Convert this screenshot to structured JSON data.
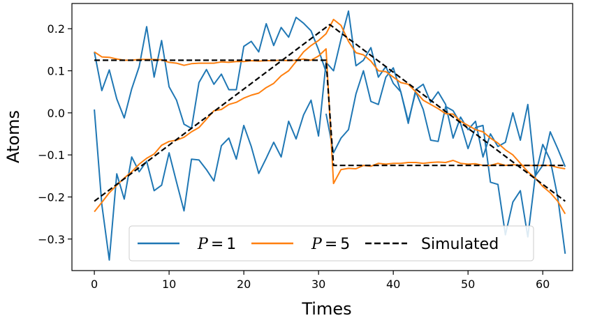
{
  "chart_data": {
    "type": "line",
    "xlabel": "Times",
    "ylabel": "Atoms",
    "xlim": [
      -3,
      64
    ],
    "ylim": [
      -0.375,
      0.26
    ],
    "xticks": [
      0,
      10,
      20,
      30,
      40,
      50,
      60
    ],
    "yticks": [
      -0.3,
      -0.2,
      -0.1,
      0.0,
      0.1,
      0.2
    ],
    "ytick_labels": [
      "−0.3",
      "−0.2",
      "−0.1",
      "0.0",
      "0.1",
      "0.2"
    ],
    "legend_position": "lower-center",
    "grid": false,
    "series": [
      {
        "name": "P=1",
        "legend_var": "P",
        "legend_eq": "=",
        "legend_num": "1",
        "color": "#1f77b4",
        "style": "solid",
        "line": 0,
        "x": [
          0,
          1,
          2,
          3,
          4,
          5,
          6,
          7,
          8,
          9,
          10,
          11,
          12,
          13,
          14,
          15,
          16,
          17,
          18,
          19,
          20,
          21,
          22,
          23,
          24,
          25,
          26,
          27,
          28,
          29,
          30,
          31
        ],
        "y": [
          0.145,
          0.053,
          0.102,
          0.033,
          -0.012,
          0.057,
          0.11,
          0.205,
          0.085,
          0.172,
          0.062,
          0.03,
          -0.027,
          -0.037,
          0.072,
          0.103,
          0.068,
          0.092,
          0.055,
          0.055,
          0.158,
          0.17,
          0.145,
          0.212,
          0.16,
          0.203,
          0.18,
          0.227,
          0.213,
          0.195,
          0.15,
          0.097
        ]
      },
      {
        "name": "",
        "color": "#1f77b4",
        "style": "solid",
        "line": 1,
        "x": [
          0,
          1,
          2,
          3,
          4,
          5,
          6,
          7,
          8,
          9,
          10,
          11,
          12,
          13,
          14,
          15,
          16,
          17,
          18,
          19,
          20,
          21,
          22,
          23,
          24,
          25,
          26,
          27,
          28,
          29,
          30,
          31,
          32,
          33,
          34,
          35,
          36,
          37,
          38,
          39,
          40,
          41,
          42,
          43,
          44,
          45,
          46,
          47,
          48,
          49,
          50,
          51,
          52,
          53,
          54,
          55,
          56,
          57,
          58,
          59,
          60,
          61,
          62,
          63
        ],
        "y": [
          0.008,
          -0.218,
          -0.35,
          -0.145,
          -0.205,
          -0.105,
          -0.14,
          -0.115,
          -0.185,
          -0.172,
          -0.095,
          -0.165,
          -0.233,
          -0.11,
          -0.112,
          -0.135,
          -0.162,
          -0.078,
          -0.06,
          -0.11,
          -0.03,
          -0.08,
          -0.144,
          -0.108,
          -0.07,
          -0.105,
          -0.02,
          -0.062,
          -0.005,
          0.03,
          -0.055,
          0.12,
          0.1,
          0.175,
          0.242,
          0.112,
          0.125,
          0.155,
          0.085,
          0.11,
          0.07,
          0.05,
          -0.02,
          0.05,
          0.008,
          -0.065,
          -0.068,
          0.015,
          0.005,
          -0.025,
          -0.085,
          -0.035,
          -0.03,
          -0.165,
          -0.17,
          -0.29,
          -0.212,
          -0.185,
          -0.295,
          -0.15,
          -0.075,
          -0.112,
          -0.2,
          -0.335
        ]
      },
      {
        "name": "",
        "color": "#1f77b4",
        "style": "solid",
        "line": 2,
        "x": [
          31,
          32,
          33,
          34,
          35,
          36,
          37,
          38,
          39,
          40,
          41,
          42,
          43,
          44,
          45,
          46,
          47,
          48,
          49,
          50,
          51,
          52,
          53,
          54,
          55,
          56,
          57,
          58,
          59,
          60,
          61,
          62,
          63
        ],
        "y": [
          -0.002,
          -0.095,
          -0.06,
          -0.04,
          0.045,
          0.1,
          0.027,
          0.02,
          0.085,
          0.107,
          0.05,
          -0.025,
          0.055,
          0.068,
          0.025,
          0.05,
          0.02,
          -0.06,
          -0.01,
          -0.04,
          -0.02,
          -0.105,
          -0.05,
          -0.08,
          -0.07,
          0.0,
          -0.065,
          0.02,
          -0.15,
          -0.125,
          -0.045,
          -0.085,
          -0.128
        ]
      },
      {
        "name": "P=5",
        "legend_var": "P",
        "legend_eq": "=",
        "legend_num": "5",
        "color": "#ff7f0e",
        "style": "solid",
        "line": 3,
        "x": [
          0,
          1,
          2,
          3,
          4,
          5,
          6,
          7,
          8,
          9,
          10,
          11,
          12,
          13,
          14,
          15,
          16,
          17,
          18,
          19,
          20,
          21,
          22,
          23,
          24,
          25,
          26,
          27,
          28,
          29,
          30,
          31,
          32,
          33,
          34,
          35,
          36,
          37,
          38,
          39,
          40,
          41,
          42,
          43,
          44,
          45,
          46,
          47,
          48,
          49,
          50,
          51,
          52,
          53,
          54,
          55,
          56,
          57,
          58,
          59,
          60,
          61,
          62,
          63
        ],
        "y": [
          0.145,
          0.133,
          0.132,
          0.128,
          0.125,
          0.125,
          0.127,
          0.127,
          0.127,
          0.126,
          0.12,
          0.118,
          0.113,
          0.117,
          0.118,
          0.118,
          0.118,
          0.121,
          0.12,
          0.122,
          0.122,
          0.124,
          0.123,
          0.124,
          0.124,
          0.125,
          0.124,
          0.125,
          0.128,
          0.125,
          0.135,
          0.152,
          -0.168,
          -0.135,
          -0.132,
          -0.133,
          -0.125,
          -0.127,
          -0.12,
          -0.122,
          -0.12,
          -0.12,
          -0.118,
          -0.118,
          -0.12,
          -0.118,
          -0.117,
          -0.118,
          -0.113,
          -0.12,
          -0.122,
          -0.121,
          -0.125,
          -0.125,
          -0.12,
          -0.125,
          -0.123,
          -0.125,
          -0.125,
          -0.125,
          -0.125,
          -0.125,
          -0.13,
          -0.133
        ]
      },
      {
        "name": "",
        "color": "#ff7f0e",
        "style": "solid",
        "line": 4,
        "x": [
          0,
          1,
          2,
          3,
          4,
          5,
          6,
          7,
          8,
          9,
          10,
          11,
          12,
          13,
          14,
          15,
          16,
          17,
          18,
          19,
          20,
          21,
          22,
          23,
          24,
          25,
          26,
          27,
          28,
          29,
          30,
          31,
          32,
          33,
          34,
          35,
          36,
          37,
          38,
          39,
          40,
          41,
          42,
          43,
          44,
          45,
          46,
          47,
          48,
          49,
          50,
          51,
          52,
          53,
          54,
          55,
          56,
          57,
          58,
          59,
          60,
          61,
          62,
          63
        ],
        "y": [
          -0.235,
          -0.213,
          -0.19,
          -0.172,
          -0.155,
          -0.14,
          -0.122,
          -0.108,
          -0.098,
          -0.077,
          -0.068,
          -0.065,
          -0.058,
          -0.045,
          -0.035,
          -0.015,
          0.005,
          0.008,
          0.02,
          0.025,
          0.035,
          0.042,
          0.047,
          0.06,
          0.07,
          0.088,
          0.1,
          0.122,
          0.145,
          0.16,
          0.172,
          0.188,
          0.222,
          0.208,
          0.17,
          0.143,
          0.138,
          0.123,
          0.1,
          0.098,
          0.085,
          0.072,
          0.068,
          0.05,
          0.03,
          0.02,
          0.01,
          -0.002,
          -0.003,
          -0.02,
          -0.03,
          -0.04,
          -0.045,
          -0.06,
          -0.072,
          -0.088,
          -0.1,
          -0.12,
          -0.14,
          -0.155,
          -0.175,
          -0.19,
          -0.21,
          -0.24
        ]
      },
      {
        "name": "Simulated",
        "color": "#000000",
        "style": "dashed",
        "line": 5,
        "x": [
          0,
          31,
          32,
          63
        ],
        "y": [
          0.125,
          0.125,
          -0.125,
          -0.125
        ]
      },
      {
        "name": "",
        "color": "#000000",
        "style": "dashed",
        "line": 6,
        "x": [
          0,
          31.5,
          63
        ],
        "y": [
          -0.21,
          0.21,
          -0.21
        ]
      }
    ]
  }
}
